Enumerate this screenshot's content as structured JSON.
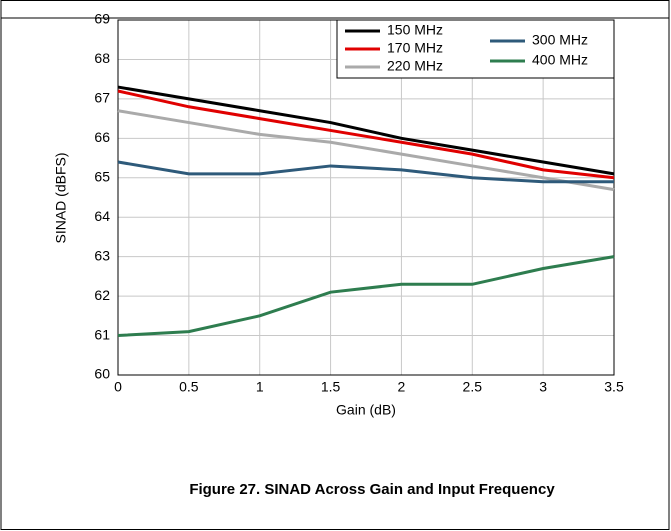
{
  "chart_data": {
    "type": "line",
    "x": [
      0,
      0.5,
      1,
      1.5,
      2,
      2.5,
      3,
      3.5
    ],
    "xlabel": "Gain (dB)",
    "ylabel": "SINAD (dBFS)",
    "xlim": [
      0,
      3.5
    ],
    "xticks": [
      0,
      0.5,
      1,
      1.5,
      2,
      2.5,
      3,
      3.5
    ],
    "ylim": [
      60,
      69
    ],
    "yticks": [
      60,
      61,
      62,
      63,
      64,
      65,
      66,
      67,
      68,
      69
    ],
    "grid": true,
    "series": [
      {
        "name": "150 MHz",
        "color": "#000000",
        "values": [
          67.3,
          67.0,
          66.7,
          66.4,
          66.0,
          65.7,
          65.4,
          65.1
        ]
      },
      {
        "name": "170 MHz",
        "color": "#e00000",
        "values": [
          67.2,
          66.8,
          66.5,
          66.2,
          65.9,
          65.6,
          65.2,
          65.0
        ]
      },
      {
        "name": "220 MHz",
        "color": "#aaaaaa",
        "values": [
          66.7,
          66.4,
          66.1,
          65.9,
          65.6,
          65.3,
          65.0,
          64.7
        ]
      },
      {
        "name": "300 MHz",
        "color": "#2e5a7a",
        "values": [
          65.4,
          65.1,
          65.1,
          65.3,
          65.2,
          65.0,
          64.9,
          64.9
        ]
      },
      {
        "name": "400 MHz",
        "color": "#2e7d4f",
        "values": [
          61.0,
          61.1,
          61.5,
          62.1,
          62.3,
          62.3,
          62.7,
          63.0
        ]
      }
    ]
  },
  "caption": "Figure 27. SINAD Across Gain and Input Frequency"
}
